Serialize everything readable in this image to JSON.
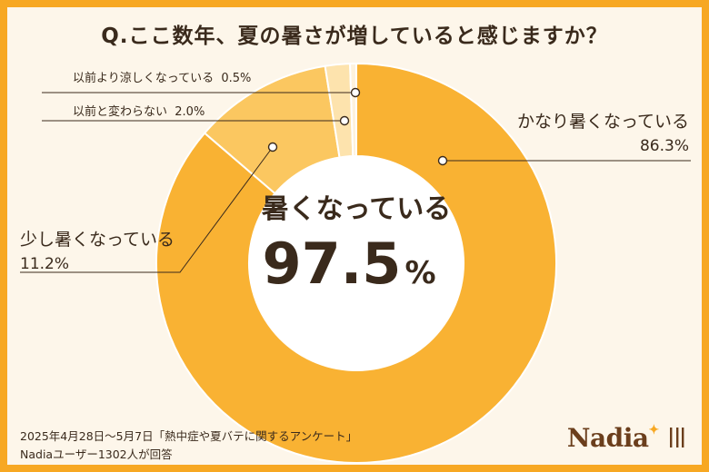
{
  "title": "Q.ここ数年、夏の暑さが増していると感じますか？",
  "center": {
    "label": "暑くなっている",
    "value": "97.5",
    "unit": "%"
  },
  "chart_data": {
    "type": "pie",
    "title": "Q.ここ数年、夏の暑さが増していると感じますか？",
    "slices": [
      {
        "label": "かなり暑くなっている",
        "value": 86.3,
        "display": "86.3%",
        "color": "#f9b233"
      },
      {
        "label": "少し暑くなっている",
        "value": 11.2,
        "display": "11.2%",
        "color": "#fbc760"
      },
      {
        "label": "以前と変わらない",
        "value": 2.0,
        "display": "2.0%",
        "color": "#fde3ad"
      },
      {
        "label": "以前より涼しくなっている",
        "value": 0.5,
        "display": "0.5%",
        "color": "#fef2dc"
      }
    ],
    "colors": {
      "stroke": "#ffffff",
      "leader": "#3a2a1c",
      "dot_fill": "#ffffff"
    }
  },
  "footer": {
    "line1": "2025年4月28日～5月7日「熱中症や夏バテに関するアンケート」",
    "line2": "Nadiaユーザー1302人が回答"
  },
  "logo": {
    "text": "Nadia",
    "icon": "fork-spoon-icon"
  }
}
